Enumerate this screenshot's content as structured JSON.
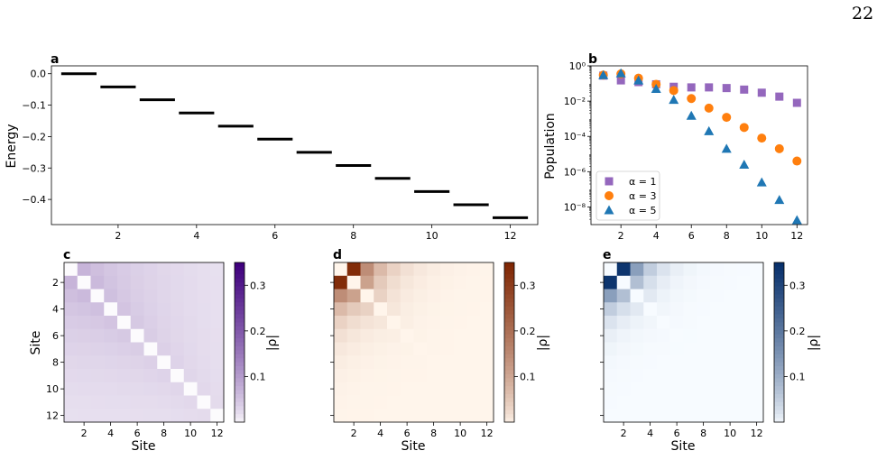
{
  "page_number": "22",
  "chart_data": [
    {
      "panel": "a",
      "type": "line",
      "ylabel": "Energy",
      "xlabel": "",
      "x": [
        1,
        2,
        3,
        4,
        5,
        6,
        7,
        8,
        9,
        10,
        11,
        12
      ],
      "values": [
        0.0,
        -0.042,
        -0.083,
        -0.125,
        -0.167,
        -0.208,
        -0.25,
        -0.292,
        -0.333,
        -0.375,
        -0.417,
        -0.458
      ],
      "xlim": [
        0.3,
        12.7
      ],
      "ylim": [
        -0.48,
        0.025
      ],
      "xticks": [
        "2",
        "4",
        "6",
        "8",
        "10",
        "12"
      ],
      "yticks": [
        "0.0",
        "−0.1",
        "−0.2",
        "−0.3",
        "−0.4"
      ]
    },
    {
      "panel": "b",
      "type": "scatter",
      "ylabel": "Population",
      "xlabel": "",
      "yscale": "log",
      "xlim": [
        0.3,
        12.6
      ],
      "ylim": [
        1e-09,
        1
      ],
      "xticks": [
        "2",
        "4",
        "6",
        "8",
        "10",
        "12"
      ],
      "yticks": [
        "10⁰",
        "10⁻²",
        "10⁻⁴",
        "10⁻⁶",
        "10⁻⁸"
      ],
      "legend_position": "lower-left",
      "x": [
        1,
        2,
        3,
        4,
        5,
        6,
        7,
        8,
        9,
        10,
        11,
        12
      ],
      "series": [
        {
          "name": "α = 1",
          "marker": "square",
          "color": "#9467bd",
          "values": [
            0.28,
            0.15,
            0.12,
            0.09,
            0.065,
            0.06,
            0.06,
            0.055,
            0.045,
            0.03,
            0.018,
            0.008
          ]
        },
        {
          "name": "α = 3",
          "marker": "circle",
          "color": "#ff7f0e",
          "values": [
            0.3,
            0.35,
            0.2,
            0.09,
            0.04,
            0.014,
            0.004,
            0.0012,
            0.00032,
            8e-05,
            2e-05,
            4e-06
          ]
        },
        {
          "name": "α = 5",
          "marker": "triangle",
          "color": "#1f77b4",
          "values": [
            0.3,
            0.38,
            0.15,
            0.05,
            0.012,
            0.0015,
            0.0002,
            2e-05,
            2.5e-06,
            2.5e-07,
            2.5e-08,
            1.8e-09
          ]
        }
      ]
    },
    {
      "panel": "c",
      "type": "heatmap",
      "xlabel": "Site",
      "ylabel": "Site",
      "colorbar_label": "|ρ|",
      "colorbar_ticks": [
        "0.1",
        "0.2",
        "0.3"
      ],
      "vmax": 0.35,
      "colormap": "purples",
      "xticks": [
        "2",
        "4",
        "6",
        "8",
        "10",
        "12"
      ],
      "yticks": [
        "2",
        "4",
        "6",
        "8",
        "10",
        "12"
      ],
      "matrix_rule": {
        "alpha": 1
      }
    },
    {
      "panel": "d",
      "type": "heatmap",
      "xlabel": "Site",
      "ylabel": "",
      "colorbar_label": "|ρ|",
      "colorbar_ticks": [
        "0.1",
        "0.2",
        "0.3"
      ],
      "vmax": 0.35,
      "colormap": "oranges",
      "xticks": [
        "2",
        "4",
        "6",
        "8",
        "10",
        "12"
      ],
      "yticks": [],
      "matrix_rule": {
        "alpha": 3
      }
    },
    {
      "panel": "e",
      "type": "heatmap",
      "xlabel": "Site",
      "ylabel": "",
      "colorbar_label": "|ρ|",
      "colorbar_ticks": [
        "0.1",
        "0.2",
        "0.3"
      ],
      "vmax": 0.35,
      "colormap": "blues",
      "xticks": [
        "2",
        "4",
        "6",
        "8",
        "10",
        "12"
      ],
      "yticks": [],
      "matrix_rule": {
        "alpha": 5
      }
    }
  ],
  "colormaps": {
    "purples": [
      "#fcfbfd",
      "#3f007d"
    ],
    "oranges": [
      "#fff5eb",
      "#7f2704"
    ],
    "blues": [
      "#f7fbff",
      "#08306b"
    ]
  }
}
